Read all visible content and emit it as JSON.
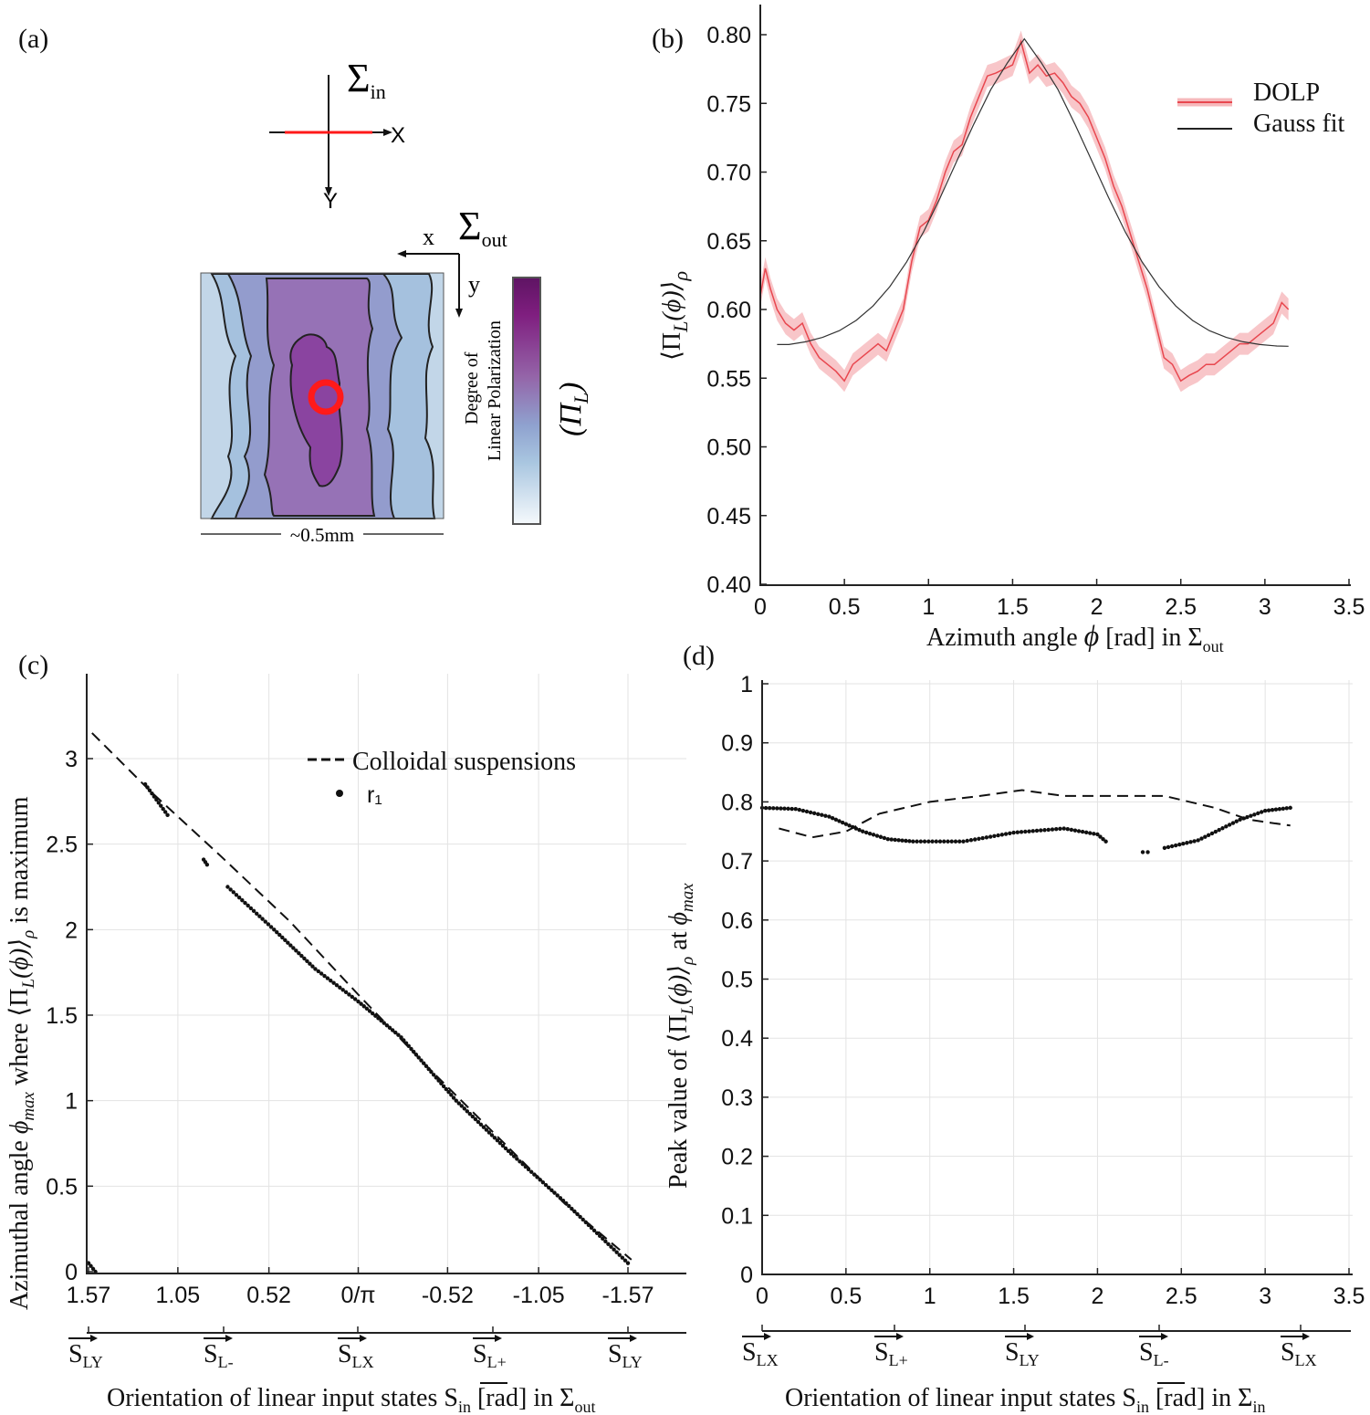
{
  "panel_a": {
    "label": "(a)",
    "sigma_in": "Σ",
    "sigma_in_sub": "in",
    "axis_X": "X",
    "axis_Y": "Y",
    "sigma_out": "Σ",
    "sigma_out_sub": "out",
    "axis_x": "x",
    "axis_y": "y",
    "colorbar_label_1": "Degree of",
    "colorbar_label_2": "Linear Polarization",
    "colorbar_symbol": "(Π",
    "colorbar_symbol_sub": "L",
    "colorbar_symbol_end": ")",
    "scale_bar": "~0.5mm",
    "colors": {
      "input_line": "#ff1a1a",
      "marker": "#ff1a1a",
      "colormap_top": "#5e1463",
      "colormap_mid": "#8f9ccc",
      "colormap_bottom": "#f5f9fc"
    }
  },
  "chart_data": [
    {
      "panel": "(b)",
      "type": "line",
      "xlabel": "Azimuth angle ϕ [rad] in Σ",
      "xlabel_parts": {
        "main": "Azimuth angle ",
        "phi": "ϕ",
        "rest": " [rad] in Σ",
        "sub": "out"
      },
      "ylabel_parts": {
        "open": "⟨Π",
        "sub": "L",
        "mid": "(ϕ)⟩",
        "rho": "ρ"
      },
      "xlim": [
        0,
        3.5
      ],
      "ylim": [
        0.4,
        0.8
      ],
      "xticks": [
        0,
        0.5,
        1,
        1.5,
        2,
        2.5,
        3,
        3.5
      ],
      "xtick_labels": [
        "0",
        "0.5",
        "1",
        "1.5",
        "2",
        "2.5",
        "3",
        "3.5"
      ],
      "yticks": [
        0.4,
        0.45,
        0.5,
        0.55,
        0.6,
        0.65,
        0.7,
        0.75,
        0.8
      ],
      "ytick_labels": [
        "0.40",
        "0.45",
        "0.50",
        "0.55",
        "0.60",
        "0.65",
        "0.70",
        "0.75",
        "0.80"
      ],
      "grid": false,
      "legend_position": "top-right",
      "series": [
        {
          "name": "DOLP",
          "color": "#e8474f",
          "band_color": "#f6b8bb",
          "x": [
            0,
            0.03,
            0.06,
            0.1,
            0.15,
            0.2,
            0.25,
            0.3,
            0.35,
            0.4,
            0.45,
            0.5,
            0.55,
            0.6,
            0.65,
            0.7,
            0.75,
            0.8,
            0.85,
            0.9,
            0.95,
            1.0,
            1.05,
            1.1,
            1.15,
            1.2,
            1.25,
            1.3,
            1.35,
            1.4,
            1.45,
            1.5,
            1.55,
            1.6,
            1.65,
            1.7,
            1.75,
            1.8,
            1.85,
            1.9,
            1.95,
            2.0,
            2.05,
            2.1,
            2.15,
            2.2,
            2.25,
            2.3,
            2.35,
            2.4,
            2.45,
            2.5,
            2.55,
            2.6,
            2.65,
            2.7,
            2.75,
            2.8,
            2.85,
            2.9,
            2.95,
            3.0,
            3.05,
            3.1,
            3.14
          ],
          "y": [
            0.61,
            0.63,
            0.615,
            0.6,
            0.59,
            0.585,
            0.59,
            0.575,
            0.565,
            0.56,
            0.555,
            0.548,
            0.56,
            0.565,
            0.57,
            0.575,
            0.57,
            0.585,
            0.6,
            0.635,
            0.66,
            0.665,
            0.68,
            0.7,
            0.715,
            0.72,
            0.74,
            0.755,
            0.77,
            0.772,
            0.775,
            0.778,
            0.795,
            0.772,
            0.778,
            0.77,
            0.772,
            0.765,
            0.755,
            0.75,
            0.74,
            0.725,
            0.71,
            0.69,
            0.675,
            0.655,
            0.635,
            0.615,
            0.59,
            0.565,
            0.56,
            0.548,
            0.552,
            0.555,
            0.56,
            0.56,
            0.565,
            0.57,
            0.575,
            0.575,
            0.58,
            0.585,
            0.59,
            0.605,
            0.6
          ]
        },
        {
          "name": "Gauss fit",
          "color": "#333333",
          "x": [
            0.1,
            0.17,
            0.27,
            0.37,
            0.47,
            0.57,
            0.67,
            0.77,
            0.87,
            0.97,
            1.07,
            1.17,
            1.27,
            1.37,
            1.47,
            1.57,
            1.67,
            1.77,
            1.87,
            1.97,
            2.07,
            2.17,
            2.27,
            2.37,
            2.47,
            2.57,
            2.67,
            2.77,
            2.87,
            2.97,
            3.07,
            3.14
          ],
          "y": [
            0.5745,
            0.5745,
            0.5765,
            0.5797,
            0.5846,
            0.592,
            0.6025,
            0.6166,
            0.6346,
            0.6564,
            0.6815,
            0.7085,
            0.735,
            0.76,
            0.7797,
            0.797,
            0.7797,
            0.76,
            0.735,
            0.7085,
            0.6815,
            0.6564,
            0.6346,
            0.6166,
            0.6025,
            0.592,
            0.5846,
            0.5797,
            0.5765,
            0.5745,
            0.5734,
            0.5732
          ]
        }
      ]
    },
    {
      "panel": "(c)",
      "type": "scatter",
      "ylabel_parts": {
        "a": "Azimuthal angle ",
        "phi": "ϕ",
        "max": "max",
        "b": " where ⟨Π",
        "L": "L",
        "c": "(ϕ)⟩",
        "rho": "ρ",
        "d": " is maximum"
      },
      "xlabel_parts": {
        "a": "Orientation of linear input states ",
        "S": "S",
        "in": "in",
        "b": " [rad] in Σ",
        "sub": "out"
      },
      "xlim": [
        1.57,
        -1.57
      ],
      "ylim": [
        0,
        3.2
      ],
      "xticks": [
        1.57,
        1.05,
        0.52,
        0,
        -0.52,
        -1.05,
        -1.57
      ],
      "xtick_labels": [
        "1.57",
        "1.05",
        "0.52",
        "0/π",
        "-0.52",
        "-1.05",
        "-1.57"
      ],
      "yticks": [
        0,
        0.5,
        1,
        1.5,
        2,
        2.5,
        3
      ],
      "ytick_labels": [
        "0",
        "0.5",
        "1",
        "1.5",
        "2",
        "2.5",
        "3"
      ],
      "grid": true,
      "legend_position": "top-right",
      "state_axis": [
        {
          "S": "S",
          "sub": "LY"
        },
        {
          "S": "S",
          "sub": "L-"
        },
        {
          "S": "S",
          "sub": "LX"
        },
        {
          "S": "S",
          "sub": "L+"
        },
        {
          "S": "S",
          "sub": "LY"
        }
      ],
      "series": [
        {
          "name": "Colloidal suspensions",
          "style": "dashed",
          "x": [
            1.55,
            1.2,
            0.8,
            0.4,
            0,
            -0.4,
            -0.8,
            -1.2,
            -1.59
          ],
          "y": [
            3.15,
            2.8,
            2.43,
            2.05,
            1.62,
            1.2,
            0.8,
            0.4,
            0.07
          ]
        },
        {
          "name": "r₁",
          "style": "dots",
          "segments": [
            {
              "x": [
                1.57,
                1.53
              ],
              "y": [
                0.05,
                0.0
              ]
            },
            {
              "x": [
                1.24,
                1.11
              ],
              "y": [
                2.85,
                2.67
              ]
            },
            {
              "x": [
                0.9,
                0.88
              ],
              "y": [
                2.41,
                2.38
              ]
            },
            {
              "x": [
                0.76,
                0.49,
                0.25,
                0,
                -0.25,
                -0.57,
                -0.89,
                -1.21,
                -1.57
              ],
              "y": [
                2.25,
                2.0,
                1.77,
                1.58,
                1.37,
                1.0,
                0.69,
                0.4,
                0.05
              ]
            }
          ]
        }
      ]
    },
    {
      "panel": "(d)",
      "type": "scatter",
      "ylabel_parts": {
        "a": "Peak value of ⟨Π",
        "L": "L",
        "b": "(ϕ)⟩",
        "rho": "ρ",
        "c": " at ",
        "phi": "ϕ",
        "max": "max"
      },
      "xlabel_parts": {
        "a": "Orientation of linear input states ",
        "S": "S",
        "in": "in",
        "b": " [rad] in Σ",
        "sub": "in"
      },
      "xlim": [
        0,
        3.5
      ],
      "ylim": [
        0,
        1
      ],
      "xticks": [
        0,
        0.5,
        1,
        1.5,
        2,
        2.5,
        3,
        3.5
      ],
      "xtick_labels": [
        "0",
        "0.5",
        "1",
        "1.5",
        "2",
        "2.5",
        "3",
        "3.5"
      ],
      "yticks": [
        0,
        0.1,
        0.2,
        0.3,
        0.4,
        0.5,
        0.6,
        0.7,
        0.8,
        0.9,
        1
      ],
      "ytick_labels": [
        "0",
        "0.1",
        "0.2",
        "0.3",
        "0.4",
        "0.5",
        "0.6",
        "0.7",
        "0.8",
        "0.9",
        "1"
      ],
      "grid": true,
      "state_axis": [
        {
          "S": "S",
          "sub": "LX"
        },
        {
          "S": "S",
          "sub": "L+"
        },
        {
          "S": "S",
          "sub": "LY"
        },
        {
          "S": "S",
          "sub": "L-"
        },
        {
          "S": "S",
          "sub": "LX"
        }
      ],
      "series": [
        {
          "style": "dashed",
          "x": [
            0.1,
            0.3,
            0.5,
            0.7,
            1.0,
            1.3,
            1.55,
            1.8,
            2.1,
            2.4,
            2.7,
            2.9,
            3.15
          ],
          "y": [
            0.755,
            0.74,
            0.75,
            0.78,
            0.8,
            0.81,
            0.82,
            0.81,
            0.81,
            0.81,
            0.79,
            0.77,
            0.76
          ]
        },
        {
          "style": "dots",
          "segments": [
            {
              "x": [
                0,
                0.2,
                0.4,
                0.6,
                0.75,
                0.9,
                1.2,
                1.5,
                1.8,
                2.0,
                2.05
              ],
              "y": [
                0.79,
                0.788,
                0.775,
                0.75,
                0.737,
                0.733,
                0.733,
                0.748,
                0.755,
                0.745,
                0.733
              ]
            },
            {
              "x": [
                2.27,
                2.3
              ],
              "y": [
                0.715,
                0.715
              ]
            },
            {
              "x": [
                2.4,
                2.6,
                2.85,
                3.0,
                3.15
              ],
              "y": [
                0.722,
                0.735,
                0.77,
                0.785,
                0.79
              ]
            }
          ]
        }
      ]
    }
  ]
}
